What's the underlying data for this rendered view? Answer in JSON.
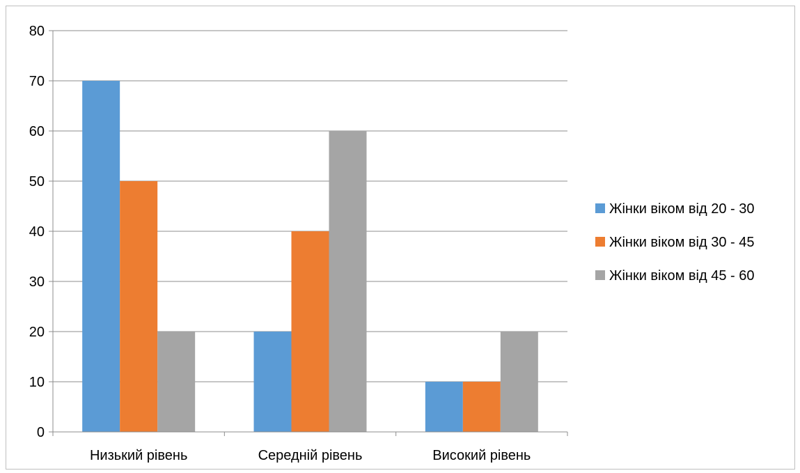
{
  "chart_data": {
    "type": "bar",
    "title": "",
    "xlabel": "",
    "ylabel": "",
    "categories": [
      "Низький рівень",
      "Середній рівень",
      "Високий рівень"
    ],
    "series": [
      {
        "name": "Жінки віком від 20 - 30",
        "values": [
          70,
          20,
          10
        ],
        "color": "#5B9BD5"
      },
      {
        "name": "Жінки віком від 30 - 45",
        "values": [
          50,
          40,
          10
        ],
        "color": "#ED7D31"
      },
      {
        "name": "Жінки віком від 45 - 60",
        "values": [
          20,
          60,
          20
        ],
        "color": "#A5A5A5"
      }
    ],
    "ylim": [
      0,
      80
    ],
    "yticks": [
      0,
      10,
      20,
      30,
      40,
      50,
      60,
      70,
      80
    ],
    "grid": true,
    "legend_position": "right"
  }
}
